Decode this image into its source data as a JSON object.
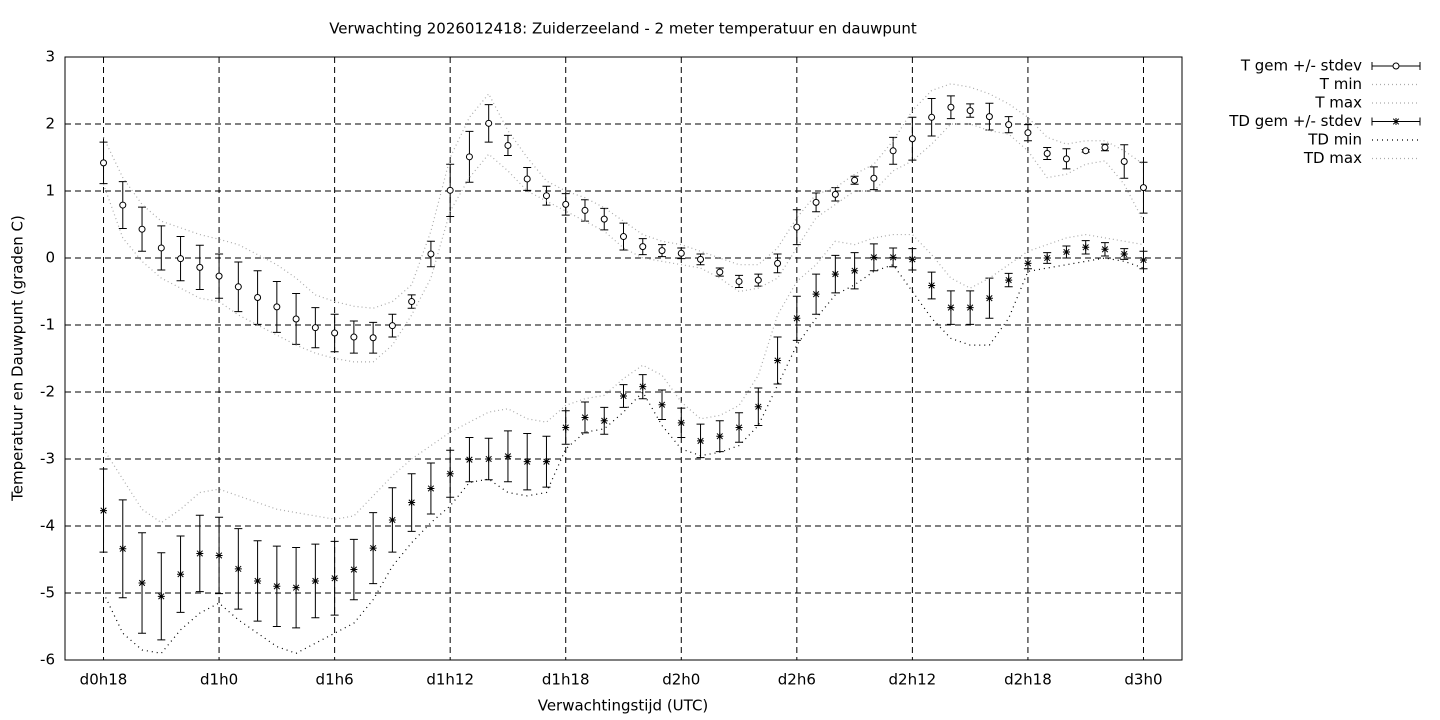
{
  "chart_data": {
    "type": "errorbar",
    "title": "Verwachting 2026012418: Zuiderzeeland - 2 meter temperatuur en dauwpunt",
    "xlabel": "Verwachtingstijd (UTC)",
    "ylabel": "Temperatuur en Dauwpunt (graden C)",
    "xlim": [
      -2,
      56
    ],
    "ylim": [
      -6,
      3
    ],
    "xticks": [
      {
        "value": 0,
        "label": "d0h18"
      },
      {
        "value": 6,
        "label": "d1h0"
      },
      {
        "value": 12,
        "label": "d1h6"
      },
      {
        "value": 18,
        "label": "d1h12"
      },
      {
        "value": 24,
        "label": "d1h18"
      },
      {
        "value": 30,
        "label": "d2h0"
      },
      {
        "value": 36,
        "label": "d2h6"
      },
      {
        "value": 42,
        "label": "d2h12"
      },
      {
        "value": 48,
        "label": "d2h18"
      },
      {
        "value": 54,
        "label": "d3h0"
      }
    ],
    "yticks": [
      -6,
      -5,
      -4,
      -3,
      -2,
      -1,
      0,
      1,
      2,
      3
    ],
    "grid": true,
    "legend": "outside-right-top",
    "x": [
      0,
      1,
      2,
      3,
      4,
      5,
      6,
      7,
      8,
      9,
      10,
      11,
      12,
      13,
      14,
      15,
      16,
      17,
      18,
      19,
      20,
      21,
      22,
      23,
      24,
      25,
      26,
      27,
      28,
      29,
      30,
      31,
      32,
      33,
      34,
      35,
      36,
      37,
      38,
      39,
      40,
      41,
      42,
      43,
      44,
      45,
      46,
      47,
      48,
      49,
      50,
      51,
      52,
      53,
      54
    ],
    "series": [
      {
        "name": "T gem +/- stdev",
        "kind": "errorbars",
        "marker": "circle",
        "color": "#000000",
        "values": [
          1.42,
          0.79,
          0.43,
          0.15,
          -0.01,
          -0.14,
          -0.27,
          -0.43,
          -0.59,
          -0.73,
          -0.91,
          -1.04,
          -1.12,
          -1.18,
          -1.19,
          -1.01,
          -0.65,
          0.06,
          1.01,
          1.51,
          2.01,
          1.68,
          1.18,
          0.93,
          0.8,
          0.71,
          0.58,
          0.32,
          0.17,
          0.11,
          0.07,
          -0.02,
          -0.21,
          -0.35,
          -0.33,
          -0.08,
          0.46,
          0.83,
          0.95,
          1.16,
          1.19,
          1.6,
          1.78,
          2.1,
          2.25,
          2.2,
          2.11,
          1.99,
          1.87,
          1.56,
          1.48,
          1.6,
          1.65,
          1.44,
          1.05
        ],
        "errors": [
          0.31,
          0.35,
          0.33,
          0.33,
          0.33,
          0.33,
          0.33,
          0.37,
          0.4,
          0.38,
          0.38,
          0.3,
          0.28,
          0.24,
          0.23,
          0.17,
          0.1,
          0.19,
          0.39,
          0.38,
          0.28,
          0.15,
          0.17,
          0.14,
          0.16,
          0.16,
          0.16,
          0.2,
          0.12,
          0.09,
          0.08,
          0.08,
          0.06,
          0.09,
          0.09,
          0.14,
          0.26,
          0.14,
          0.1,
          0.06,
          0.17,
          0.2,
          0.32,
          0.28,
          0.17,
          0.1,
          0.2,
          0.12,
          0.12,
          0.09,
          0.15,
          0.02,
          0.05,
          0.25,
          0.38
        ]
      },
      {
        "name": "T min",
        "kind": "line",
        "dash": "1 3",
        "color": "#aaaaaa",
        "values": [
          1.1,
          0.3,
          -0.05,
          -0.3,
          -0.45,
          -0.6,
          -0.65,
          -0.85,
          -1.0,
          -1.15,
          -1.3,
          -1.42,
          -1.5,
          -1.55,
          -1.55,
          -1.3,
          -0.85,
          -0.3,
          0.7,
          1.2,
          1.55,
          1.3,
          1.0,
          0.85,
          0.7,
          0.55,
          0.4,
          0.15,
          0.0,
          -0.05,
          -0.1,
          -0.15,
          -0.3,
          -0.5,
          -0.45,
          -0.3,
          0.15,
          0.6,
          0.8,
          1.0,
          1.0,
          1.3,
          1.45,
          1.7,
          2.0,
          2.0,
          1.9,
          1.85,
          1.6,
          1.2,
          1.25,
          1.4,
          1.45,
          1.1,
          0.55
        ]
      },
      {
        "name": "T max",
        "kind": "line",
        "dash": "1 3",
        "color": "#aaaaaa",
        "values": [
          1.8,
          1.2,
          0.8,
          0.55,
          0.45,
          0.35,
          0.28,
          0.2,
          0.05,
          -0.1,
          -0.3,
          -0.55,
          -0.65,
          -0.72,
          -0.75,
          -0.65,
          -0.4,
          0.4,
          1.5,
          2.1,
          2.45,
          1.9,
          1.5,
          1.15,
          1.0,
          0.9,
          0.75,
          0.55,
          0.35,
          0.25,
          0.2,
          0.1,
          0.0,
          -0.1,
          -0.1,
          0.15,
          0.6,
          0.95,
          1.05,
          1.25,
          1.4,
          1.75,
          2.2,
          2.5,
          2.6,
          2.55,
          2.45,
          2.3,
          2.1,
          1.8,
          1.7,
          1.75,
          1.75,
          1.6,
          1.4
        ]
      },
      {
        "name": "TD gem +/- stdev",
        "kind": "errorbars",
        "marker": "asterisk",
        "color": "#000000",
        "values": [
          -3.77,
          -4.34,
          -4.85,
          -5.05,
          -4.72,
          -4.41,
          -4.44,
          -4.64,
          -4.82,
          -4.9,
          -4.92,
          -4.82,
          -4.78,
          -4.65,
          -4.33,
          -3.91,
          -3.65,
          -3.44,
          -3.22,
          -3.01,
          -3.0,
          -2.96,
          -3.04,
          -3.04,
          -2.53,
          -2.38,
          -2.43,
          -2.06,
          -1.92,
          -2.19,
          -2.46,
          -2.73,
          -2.66,
          -2.53,
          -2.22,
          -1.53,
          -0.9,
          -0.54,
          -0.24,
          -0.19,
          0.01,
          0.01,
          -0.02,
          -0.41,
          -0.74,
          -0.74,
          -0.6,
          -0.33,
          -0.08,
          0.0,
          0.09,
          0.16,
          0.13,
          0.06,
          -0.03
        ],
        "errors": [
          0.62,
          0.73,
          0.75,
          0.65,
          0.57,
          0.57,
          0.57,
          0.6,
          0.6,
          0.6,
          0.6,
          0.55,
          0.55,
          0.45,
          0.53,
          0.48,
          0.43,
          0.38,
          0.35,
          0.33,
          0.31,
          0.38,
          0.42,
          0.38,
          0.25,
          0.23,
          0.2,
          0.17,
          0.18,
          0.22,
          0.22,
          0.25,
          0.23,
          0.22,
          0.28,
          0.35,
          0.33,
          0.3,
          0.28,
          0.27,
          0.2,
          0.14,
          0.16,
          0.2,
          0.25,
          0.25,
          0.3,
          0.1,
          0.08,
          0.08,
          0.09,
          0.1,
          0.1,
          0.08,
          0.13
        ]
      },
      {
        "name": "TD min",
        "kind": "line",
        "dash": "1 4",
        "color": "#000000",
        "values": [
          -5.0,
          -5.6,
          -5.85,
          -5.9,
          -5.55,
          -5.3,
          -5.15,
          -5.4,
          -5.6,
          -5.8,
          -5.9,
          -5.75,
          -5.6,
          -5.45,
          -5.1,
          -4.6,
          -4.25,
          -3.95,
          -3.7,
          -3.35,
          -3.3,
          -3.5,
          -3.55,
          -3.5,
          -2.85,
          -2.6,
          -2.55,
          -2.3,
          -2.0,
          -2.5,
          -2.85,
          -2.95,
          -2.9,
          -2.8,
          -2.5,
          -1.9,
          -1.3,
          -0.9,
          -0.55,
          -0.4,
          -0.2,
          -0.1,
          -0.5,
          -0.9,
          -1.2,
          -1.3,
          -1.3,
          -0.9,
          -0.2,
          -0.15,
          -0.1,
          -0.05,
          0.0,
          -0.05,
          -0.15
        ]
      },
      {
        "name": "TD max",
        "kind": "line",
        "dash": "1 3",
        "color": "#aaaaaa",
        "values": [
          -2.85,
          -3.3,
          -3.75,
          -3.95,
          -3.75,
          -3.5,
          -3.45,
          -3.55,
          -3.65,
          -3.75,
          -3.8,
          -3.85,
          -3.9,
          -3.85,
          -3.55,
          -3.25,
          -3.0,
          -2.8,
          -2.6,
          -2.45,
          -2.3,
          -2.25,
          -2.4,
          -2.45,
          -2.2,
          -2.1,
          -2.05,
          -1.8,
          -1.6,
          -1.75,
          -2.15,
          -2.4,
          -2.35,
          -2.2,
          -1.75,
          -0.85,
          -0.35,
          -0.1,
          0.25,
          0.2,
          0.3,
          0.35,
          0.35,
          0.05,
          -0.3,
          -0.45,
          -0.3,
          -0.1,
          0.1,
          0.2,
          0.3,
          0.35,
          0.3,
          0.25,
          0.2
        ]
      }
    ]
  }
}
